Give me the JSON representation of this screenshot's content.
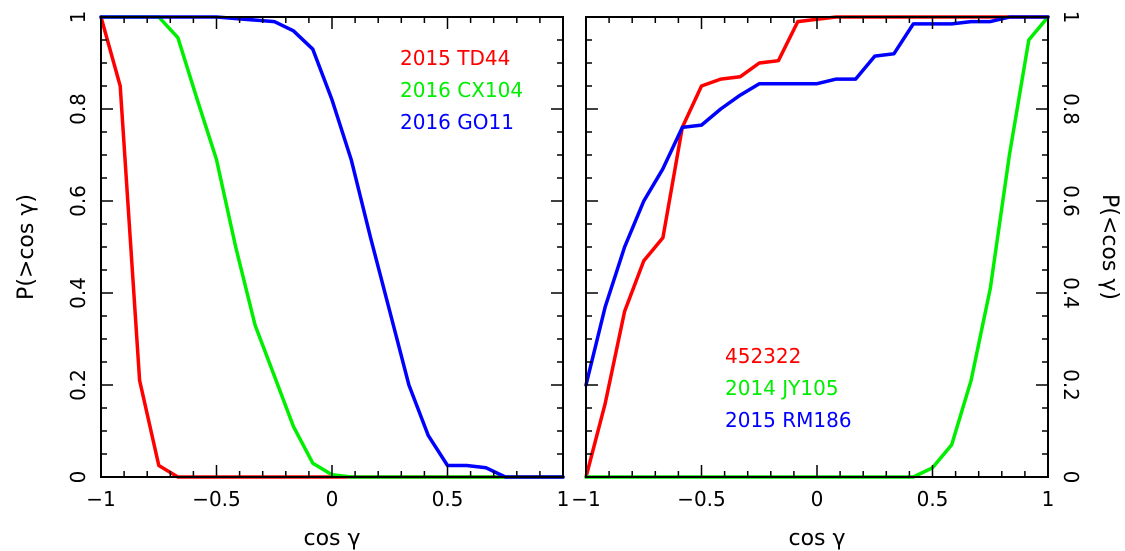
{
  "chart_data": [
    {
      "type": "line",
      "panel": "left",
      "xlabel": "cos γ",
      "ylabel": "P(>cos γ)",
      "xlim": [
        -1,
        1
      ],
      "ylim": [
        0,
        1
      ],
      "xticks": [
        -1,
        -0.5,
        0,
        0.5,
        1
      ],
      "xtick_labels": [
        "−1",
        "−0.5",
        "0",
        "0.5",
        "1"
      ],
      "yticks": [
        0,
        0.2,
        0.4,
        0.6,
        0.8,
        1
      ],
      "ytick_labels": [
        "0",
        "0.2",
        "0.4",
        "0.6",
        "0.8",
        "1"
      ],
      "legend_position": "top-right",
      "series": [
        {
          "name": "2015 TD44",
          "color": "#ff0000",
          "x": [
            -1,
            -0.917,
            -0.833,
            -0.75,
            -0.667,
            -0.583,
            -0.5,
            1
          ],
          "y": [
            1,
            0.85,
            0.21,
            0.025,
            0,
            0,
            0,
            0
          ]
        },
        {
          "name": "2016 CX104",
          "color": "#00ee00",
          "x": [
            -1,
            -0.75,
            -0.667,
            -0.583,
            -0.5,
            -0.417,
            -0.333,
            -0.25,
            -0.167,
            -0.083,
            0,
            0.083,
            1
          ],
          "y": [
            1,
            1,
            0.955,
            0.82,
            0.69,
            0.5,
            0.33,
            0.22,
            0.11,
            0.03,
            0.005,
            0,
            0
          ]
        },
        {
          "name": "2016 GO11",
          "color": "#0000ff",
          "x": [
            -1,
            -0.583,
            -0.5,
            -0.25,
            -0.167,
            -0.083,
            0,
            0.083,
            0.167,
            0.25,
            0.333,
            0.417,
            0.5,
            0.583,
            0.667,
            0.75,
            1
          ],
          "y": [
            1,
            1,
            1,
            0.99,
            0.97,
            0.93,
            0.82,
            0.69,
            0.52,
            0.36,
            0.2,
            0.09,
            0.025,
            0.025,
            0.02,
            0,
            0
          ]
        }
      ]
    },
    {
      "type": "line",
      "panel": "right",
      "xlabel": "cos γ",
      "ylabel": "P(<cos γ)",
      "xlim": [
        -1,
        1
      ],
      "ylim": [
        0,
        1
      ],
      "xticks": [
        -1,
        -0.5,
        0,
        0.5,
        1
      ],
      "xtick_labels": [
        "−1",
        "−0.5",
        "0",
        "0.5",
        "1"
      ],
      "yticks": [
        0,
        0.2,
        0.4,
        0.6,
        0.8,
        1
      ],
      "ytick_labels": [
        "0",
        "0.2",
        "0.4",
        "0.6",
        "0.8",
        "1"
      ],
      "legend_position": "bottom-center",
      "series": [
        {
          "name": "452322",
          "color": "#ff0000",
          "x": [
            -1,
            -0.917,
            -0.833,
            -0.75,
            -0.667,
            -0.583,
            -0.5,
            -0.417,
            -0.333,
            -0.25,
            -0.167,
            -0.083,
            0,
            0.083,
            1
          ],
          "y": [
            0,
            0.16,
            0.36,
            0.47,
            0.52,
            0.76,
            0.85,
            0.865,
            0.87,
            0.9,
            0.905,
            0.99,
            0.995,
            1,
            1
          ]
        },
        {
          "name": "2014 JY105",
          "color": "#00ee00",
          "x": [
            -1,
            0.417,
            0.5,
            0.583,
            0.667,
            0.75,
            0.833,
            0.917,
            1
          ],
          "y": [
            0,
            0,
            0.02,
            0.07,
            0.21,
            0.41,
            0.7,
            0.95,
            1
          ]
        },
        {
          "name": "2015 RM186",
          "color": "#0000ff",
          "x": [
            -1,
            -0.917,
            -0.833,
            -0.75,
            -0.667,
            -0.583,
            -0.5,
            -0.417,
            -0.333,
            -0.25,
            -0.167,
            -0.083,
            0,
            0.083,
            0.167,
            0.25,
            0.333,
            0.417,
            0.5,
            0.583,
            0.667,
            0.75,
            0.833,
            0.917,
            1
          ],
          "y": [
            0.2,
            0.37,
            0.5,
            0.6,
            0.67,
            0.76,
            0.765,
            0.8,
            0.83,
            0.855,
            0.855,
            0.855,
            0.855,
            0.865,
            0.865,
            0.915,
            0.92,
            0.985,
            0.985,
            0.985,
            0.99,
            0.99,
            1,
            1,
            1
          ]
        }
      ]
    }
  ]
}
